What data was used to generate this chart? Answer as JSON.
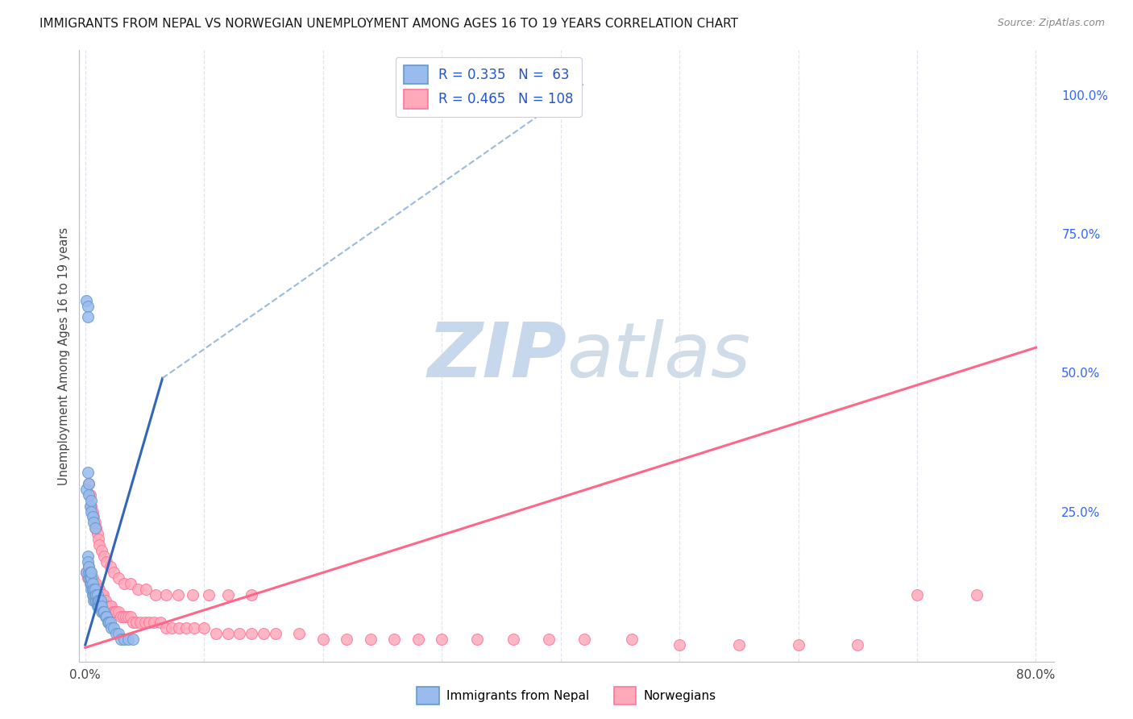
{
  "title": "IMMIGRANTS FROM NEPAL VS NORWEGIAN UNEMPLOYMENT AMONG AGES 16 TO 19 YEARS CORRELATION CHART",
  "source": "Source: ZipAtlas.com",
  "ylabel": "Unemployment Among Ages 16 to 19 years",
  "xlim": [
    -0.005,
    0.815
  ],
  "ylim": [
    -0.02,
    1.08
  ],
  "xtick_vals": [
    0.0,
    0.1,
    0.2,
    0.3,
    0.4,
    0.5,
    0.6,
    0.7,
    0.8
  ],
  "xticklabels": [
    "0.0%",
    "",
    "",
    "",
    "",
    "",
    "",
    "",
    "80.0%"
  ],
  "ytick_right_labels": [
    "100.0%",
    "75.0%",
    "50.0%",
    "25.0%"
  ],
  "ytick_right_values": [
    1.0,
    0.75,
    0.5,
    0.25
  ],
  "nepal_color": "#99BBEE",
  "norwegian_color": "#FFAABB",
  "nepal_edge_color": "#6699CC",
  "norwegian_edge_color": "#FF7799",
  "nepal_trend_color": "#3366BB",
  "nepal_trend_dash_color": "#99BBDD",
  "norwegian_trend_color": "#FF6688",
  "watermark_zip": "ZIP",
  "watermark_atlas": "atlas",
  "watermark_color": "#C8D8EC",
  "background_color": "#FFFFFF",
  "grid_color": "#E0E5F0",
  "legend_nepal_label": "R = 0.335   N =  63",
  "legend_norwegian_label": "R = 0.465   N = 108",
  "nepal_trend_x0": 0.0,
  "nepal_trend_x1": 0.065,
  "nepal_trend_y0": 0.01,
  "nepal_trend_y1": 0.49,
  "nepal_trend_dash_x0": 0.065,
  "nepal_trend_dash_x1": 0.42,
  "nepal_trend_dash_y0": 0.49,
  "nepal_trend_dash_y1": 1.02,
  "norw_trend_x0": 0.0,
  "norw_trend_x1": 0.8,
  "norw_trend_y0": 0.005,
  "norw_trend_y1": 0.545,
  "nepal_x": [
    0.001,
    0.002,
    0.002,
    0.003,
    0.003,
    0.003,
    0.004,
    0.004,
    0.004,
    0.005,
    0.005,
    0.005,
    0.005,
    0.006,
    0.006,
    0.006,
    0.007,
    0.007,
    0.007,
    0.008,
    0.008,
    0.008,
    0.009,
    0.009,
    0.01,
    0.01,
    0.01,
    0.011,
    0.011,
    0.012,
    0.012,
    0.013,
    0.013,
    0.014,
    0.014,
    0.015,
    0.016,
    0.017,
    0.018,
    0.019,
    0.02,
    0.021,
    0.022,
    0.024,
    0.026,
    0.028,
    0.03,
    0.033,
    0.036,
    0.04,
    0.001,
    0.002,
    0.003,
    0.003,
    0.004,
    0.005,
    0.005,
    0.006,
    0.007,
    0.008,
    0.001,
    0.002,
    0.002
  ],
  "nepal_y": [
    0.14,
    0.17,
    0.16,
    0.13,
    0.14,
    0.15,
    0.12,
    0.13,
    0.14,
    0.11,
    0.12,
    0.13,
    0.14,
    0.1,
    0.11,
    0.12,
    0.09,
    0.1,
    0.11,
    0.09,
    0.1,
    0.11,
    0.09,
    0.1,
    0.08,
    0.09,
    0.1,
    0.08,
    0.09,
    0.08,
    0.09,
    0.08,
    0.09,
    0.07,
    0.08,
    0.07,
    0.07,
    0.06,
    0.06,
    0.05,
    0.05,
    0.05,
    0.04,
    0.04,
    0.03,
    0.03,
    0.02,
    0.02,
    0.02,
    0.02,
    0.29,
    0.32,
    0.28,
    0.3,
    0.26,
    0.27,
    0.25,
    0.24,
    0.23,
    0.22,
    0.63,
    0.62,
    0.6
  ],
  "norwegian_x": [
    0.001,
    0.002,
    0.003,
    0.003,
    0.004,
    0.004,
    0.005,
    0.005,
    0.006,
    0.006,
    0.007,
    0.007,
    0.008,
    0.008,
    0.009,
    0.009,
    0.01,
    0.01,
    0.011,
    0.011,
    0.012,
    0.012,
    0.013,
    0.013,
    0.014,
    0.015,
    0.015,
    0.016,
    0.017,
    0.018,
    0.019,
    0.02,
    0.021,
    0.022,
    0.023,
    0.024,
    0.025,
    0.026,
    0.028,
    0.03,
    0.032,
    0.034,
    0.036,
    0.038,
    0.04,
    0.043,
    0.046,
    0.05,
    0.054,
    0.058,
    0.063,
    0.068,
    0.073,
    0.079,
    0.085,
    0.092,
    0.1,
    0.11,
    0.12,
    0.13,
    0.14,
    0.15,
    0.16,
    0.18,
    0.2,
    0.22,
    0.24,
    0.26,
    0.28,
    0.3,
    0.33,
    0.36,
    0.39,
    0.42,
    0.46,
    0.5,
    0.55,
    0.6,
    0.65,
    0.7,
    0.75,
    0.003,
    0.004,
    0.005,
    0.006,
    0.007,
    0.008,
    0.009,
    0.01,
    0.011,
    0.012,
    0.014,
    0.016,
    0.018,
    0.021,
    0.024,
    0.028,
    0.033,
    0.038,
    0.044,
    0.051,
    0.059,
    0.068,
    0.078,
    0.09,
    0.104,
    0.12,
    0.14
  ],
  "norwegian_y": [
    0.14,
    0.13,
    0.14,
    0.15,
    0.13,
    0.14,
    0.12,
    0.13,
    0.12,
    0.13,
    0.11,
    0.12,
    0.11,
    0.12,
    0.11,
    0.12,
    0.1,
    0.11,
    0.1,
    0.11,
    0.1,
    0.11,
    0.09,
    0.1,
    0.1,
    0.09,
    0.1,
    0.09,
    0.09,
    0.08,
    0.08,
    0.08,
    0.08,
    0.08,
    0.07,
    0.07,
    0.07,
    0.07,
    0.07,
    0.06,
    0.06,
    0.06,
    0.06,
    0.06,
    0.05,
    0.05,
    0.05,
    0.05,
    0.05,
    0.05,
    0.05,
    0.04,
    0.04,
    0.04,
    0.04,
    0.04,
    0.04,
    0.03,
    0.03,
    0.03,
    0.03,
    0.03,
    0.03,
    0.03,
    0.02,
    0.02,
    0.02,
    0.02,
    0.02,
    0.02,
    0.02,
    0.02,
    0.02,
    0.02,
    0.02,
    0.01,
    0.01,
    0.01,
    0.01,
    0.1,
    0.1,
    0.3,
    0.28,
    0.26,
    0.25,
    0.24,
    0.23,
    0.22,
    0.21,
    0.2,
    0.19,
    0.18,
    0.17,
    0.16,
    0.15,
    0.14,
    0.13,
    0.12,
    0.12,
    0.11,
    0.11,
    0.1,
    0.1,
    0.1,
    0.1,
    0.1,
    0.1,
    0.1
  ]
}
